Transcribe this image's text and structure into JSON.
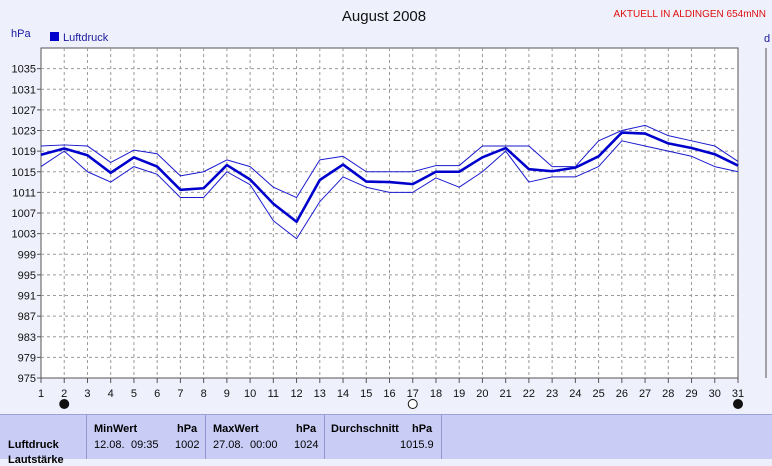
{
  "header": {
    "title": "August 2008",
    "station": "AKTUELL IN ALDINGEN 654mNN",
    "unit_left": "hPa",
    "unit_right": "d"
  },
  "chart_data": {
    "type": "line",
    "title": "August 2008",
    "ylabel": "hPa",
    "ylim": [
      975,
      1039
    ],
    "yticks": [
      975,
      979,
      983,
      987,
      991,
      995,
      999,
      1003,
      1007,
      1011,
      1015,
      1019,
      1023,
      1027,
      1031,
      1035
    ],
    "xlim": [
      1,
      31
    ],
    "x": [
      1,
      2,
      3,
      4,
      5,
      6,
      7,
      8,
      9,
      10,
      11,
      12,
      13,
      14,
      15,
      16,
      17,
      18,
      19,
      20,
      21,
      22,
      23,
      24,
      25,
      26,
      27,
      28,
      29,
      30,
      31
    ],
    "grid": true,
    "legend": "top-left",
    "series": [
      {
        "name": "Luftdruck",
        "role": "mean",
        "color": "#0000cc",
        "values": [
          1018.3,
          1019.5,
          1018.2,
          1014.8,
          1017.8,
          1016.0,
          1011.5,
          1011.8,
          1016.3,
          1013.5,
          1008.8,
          1005.3,
          1013.4,
          1016.4,
          1013.1,
          1013.0,
          1012.6,
          1015.0,
          1015.0,
          1017.8,
          1019.6,
          1015.5,
          1015.1,
          1015.8,
          1018.0,
          1022.6,
          1022.4,
          1020.5,
          1019.6,
          1018.4,
          1016.2
        ]
      },
      {
        "role": "max",
        "color": "#1a1ad0",
        "values": [
          1020.0,
          1020.2,
          1020.0,
          1016.8,
          1019.2,
          1018.5,
          1014.2,
          1015.0,
          1017.3,
          1016.0,
          1012.0,
          1010.0,
          1017.3,
          1018.0,
          1015.0,
          1015.0,
          1015.0,
          1016.2,
          1016.2,
          1020.0,
          1020.0,
          1020.0,
          1016.0,
          1016.0,
          1021.0,
          1023.0,
          1024.0,
          1022.0,
          1021.0,
          1020.0,
          1017.0
        ]
      },
      {
        "role": "min",
        "color": "#1a1ad0",
        "values": [
          1016.0,
          1019.0,
          1015.0,
          1013.0,
          1016.0,
          1014.5,
          1010.0,
          1010.0,
          1015.0,
          1012.5,
          1005.5,
          1002.0,
          1009.2,
          1014.0,
          1012.0,
          1011.0,
          1011.0,
          1013.8,
          1012.0,
          1015.0,
          1019.0,
          1013.0,
          1014.0,
          1014.0,
          1016.0,
          1021.0,
          1020.0,
          1019.0,
          1018.0,
          1016.0,
          1015.0
        ]
      }
    ],
    "day_markers": [
      {
        "day": 2,
        "icon": "new-moon-icon"
      },
      {
        "day": 17,
        "icon": "full-moon-icon"
      },
      {
        "day": 31,
        "icon": "new-moon-icon"
      }
    ]
  },
  "stats": {
    "min": {
      "label": "MinWert",
      "unit": "hPa",
      "date": "12.08.",
      "time": "09:35",
      "value": "1002"
    },
    "max": {
      "label": "MaxWert",
      "unit": "hPa",
      "date": "27.08.",
      "time": "00:00",
      "value": "1024"
    },
    "avg": {
      "label": "Durchschnitt",
      "unit": "hPa",
      "value": "1015.9"
    },
    "row_label": "Luftdruck",
    "row_label_2": "Lautstärke",
    "colors": {
      "panel": "#c9cdf6",
      "plot": "#ffffff",
      "background": "#eef0fb"
    }
  }
}
